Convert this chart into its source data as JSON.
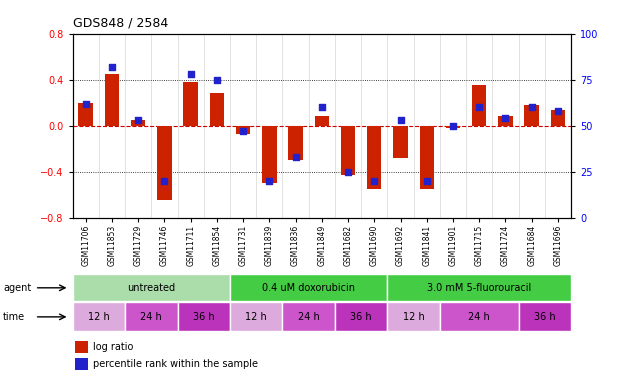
{
  "title": "GDS848 / 2584",
  "samples": [
    "GSM11706",
    "GSM11853",
    "GSM11729",
    "GSM11746",
    "GSM11711",
    "GSM11854",
    "GSM11731",
    "GSM11839",
    "GSM11836",
    "GSM11849",
    "GSM11682",
    "GSM11690",
    "GSM11692",
    "GSM11841",
    "GSM11901",
    "GSM11715",
    "GSM11724",
    "GSM11684",
    "GSM11696"
  ],
  "log_ratio": [
    0.2,
    0.45,
    0.05,
    -0.65,
    0.38,
    0.28,
    -0.07,
    -0.5,
    -0.3,
    0.08,
    -0.43,
    -0.55,
    -0.28,
    -0.55,
    -0.02,
    0.35,
    0.08,
    0.18,
    0.14
  ],
  "percentile": [
    62,
    82,
    53,
    20,
    78,
    75,
    47,
    20,
    33,
    60,
    25,
    20,
    53,
    20,
    50,
    60,
    54,
    60,
    58
  ],
  "ylim_left": [
    -0.8,
    0.8
  ],
  "ylim_right": [
    0,
    100
  ],
  "yticks_left": [
    -0.8,
    -0.4,
    0.0,
    0.4,
    0.8
  ],
  "yticks_right": [
    0,
    25,
    50,
    75,
    100
  ],
  "bar_color": "#cc2200",
  "dot_color": "#2222cc",
  "zero_line_color": "#cc0000",
  "agent_groups": [
    {
      "label": "untreated",
      "start": 0,
      "end": 6,
      "color": "#aaddaa"
    },
    {
      "label": "0.4 uM doxorubicin",
      "start": 6,
      "end": 12,
      "color": "#44cc44"
    },
    {
      "label": "3.0 mM 5-fluorouracil",
      "start": 12,
      "end": 19,
      "color": "#44cc44"
    }
  ],
  "time_groups": [
    {
      "label": "12 h",
      "start": 0,
      "end": 2,
      "color": "#ddaadd"
    },
    {
      "label": "24 h",
      "start": 2,
      "end": 4,
      "color": "#cc55cc"
    },
    {
      "label": "36 h",
      "start": 4,
      "end": 6,
      "color": "#bb33bb"
    },
    {
      "label": "12 h",
      "start": 6,
      "end": 8,
      "color": "#ddaadd"
    },
    {
      "label": "24 h",
      "start": 8,
      "end": 10,
      "color": "#cc55cc"
    },
    {
      "label": "36 h",
      "start": 10,
      "end": 12,
      "color": "#bb33bb"
    },
    {
      "label": "12 h",
      "start": 12,
      "end": 14,
      "color": "#ddaadd"
    },
    {
      "label": "24 h",
      "start": 14,
      "end": 17,
      "color": "#cc55cc"
    },
    {
      "label": "36 h",
      "start": 17,
      "end": 19,
      "color": "#bb33bb"
    }
  ],
  "legend_log": "log ratio",
  "legend_pct": "percentile rank within the sample"
}
